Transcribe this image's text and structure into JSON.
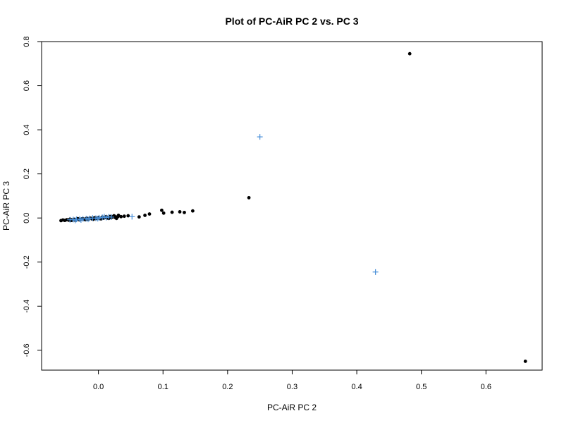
{
  "chart_data": {
    "type": "scatter",
    "title": "Plot of PC-AiR PC 2 vs. PC 3",
    "xlabel": "PC-AiR PC 2",
    "ylabel": "PC-AiR PC 3",
    "xlim": [
      -0.088,
      0.687
    ],
    "ylim": [
      -0.69,
      0.8
    ],
    "xticks": [
      0.0,
      0.1,
      0.2,
      0.3,
      0.4,
      0.5,
      0.6
    ],
    "xtick_labels": [
      "0.0",
      "0.1",
      "0.2",
      "0.3",
      "0.4",
      "0.5",
      "0.6"
    ],
    "yticks": [
      -0.6,
      -0.4,
      -0.2,
      0.0,
      0.2,
      0.4,
      0.6,
      0.8
    ],
    "ytick_labels": [
      "-0.6",
      "-0.4",
      "-0.2",
      "0.0",
      "0.2",
      "0.4",
      "0.6",
      "0.8"
    ],
    "grid": false,
    "legend": false,
    "series": [
      {
        "marker": "dot",
        "color": "#000000",
        "points": [
          [
            0.482,
            0.745
          ],
          [
            0.661,
            -0.65
          ],
          [
            0.233,
            0.092
          ],
          [
            0.146,
            0.032
          ],
          [
            0.133,
            0.025
          ],
          [
            0.126,
            0.028
          ],
          [
            0.114,
            0.026
          ],
          [
            0.101,
            0.022
          ],
          [
            0.098,
            0.035
          ],
          [
            0.079,
            0.018
          ],
          [
            0.072,
            0.012
          ],
          [
            0.063,
            0.005
          ],
          [
            0.046,
            0.01
          ],
          [
            0.04,
            0.008
          ],
          [
            0.035,
            0.006
          ],
          [
            0.03,
            0.006
          ],
          [
            0.027,
            0.004
          ],
          [
            0.025,
            0.008
          ],
          [
            0.022,
            0.005
          ],
          [
            0.02,
            0.002
          ],
          [
            0.017,
            0.004
          ],
          [
            0.014,
            0.0
          ],
          [
            0.011,
            0.003
          ],
          [
            0.008,
            -0.001
          ],
          [
            0.005,
            0.001
          ],
          [
            0.002,
            -0.002
          ],
          [
            -0.001,
            0.0
          ],
          [
            -0.004,
            -0.003
          ],
          [
            -0.007,
            -0.001
          ],
          [
            -0.01,
            -0.004
          ],
          [
            -0.013,
            -0.002
          ],
          [
            -0.016,
            -0.005
          ],
          [
            -0.019,
            -0.003
          ],
          [
            -0.022,
            -0.006
          ],
          [
            -0.025,
            -0.004
          ],
          [
            -0.028,
            -0.007
          ],
          [
            -0.031,
            -0.005
          ],
          [
            -0.034,
            -0.008
          ],
          [
            -0.037,
            -0.006
          ],
          [
            -0.04,
            -0.009
          ],
          [
            -0.043,
            -0.007
          ],
          [
            -0.046,
            -0.01
          ],
          [
            -0.049,
            -0.008
          ],
          [
            -0.052,
            -0.011
          ],
          [
            -0.055,
            -0.009
          ],
          [
            -0.058,
            -0.012
          ],
          [
            0.028,
            -0.002
          ],
          [
            0.024,
            0.01
          ],
          [
            0.018,
            0.007
          ],
          [
            0.012,
            0.006
          ],
          [
            0.006,
            0.004
          ],
          [
            0.0,
            0.002
          ],
          [
            -0.006,
            0.001
          ],
          [
            -0.012,
            -0.001
          ],
          [
            -0.018,
            -0.002
          ],
          [
            -0.024,
            -0.004
          ],
          [
            -0.03,
            -0.008
          ],
          [
            -0.036,
            -0.01
          ],
          [
            -0.042,
            -0.011
          ],
          [
            0.031,
            0.012
          ],
          [
            0.026,
            0.002
          ],
          [
            0.016,
            -0.002
          ],
          [
            0.004,
            -0.004
          ],
          [
            -0.008,
            -0.006
          ],
          [
            -0.02,
            -0.008
          ],
          [
            -0.032,
            -0.003
          ],
          [
            -0.044,
            -0.005
          ]
        ]
      },
      {
        "marker": "plus",
        "color": "#4a90d9",
        "points": [
          [
            0.25,
            0.368
          ],
          [
            0.429,
            -0.245
          ],
          [
            0.052,
            0.006
          ],
          [
            0.02,
            0.004
          ],
          [
            0.012,
            0.002
          ],
          [
            0.006,
            0.003
          ],
          [
            0.001,
            0.001
          ],
          [
            -0.004,
            -0.001
          ],
          [
            -0.009,
            0.0
          ],
          [
            -0.014,
            -0.002
          ],
          [
            -0.019,
            -0.003
          ],
          [
            -0.024,
            -0.004
          ],
          [
            -0.029,
            -0.005
          ],
          [
            -0.034,
            -0.006
          ],
          [
            -0.039,
            -0.007
          ],
          [
            -0.044,
            -0.008
          ],
          [
            0.016,
            0.005
          ],
          [
            -0.001,
            -0.003
          ],
          [
            -0.027,
            -0.009
          ],
          [
            0.009,
            0.006
          ],
          [
            -0.016,
            -0.006
          ],
          [
            -0.036,
            -0.011
          ]
        ]
      }
    ]
  }
}
